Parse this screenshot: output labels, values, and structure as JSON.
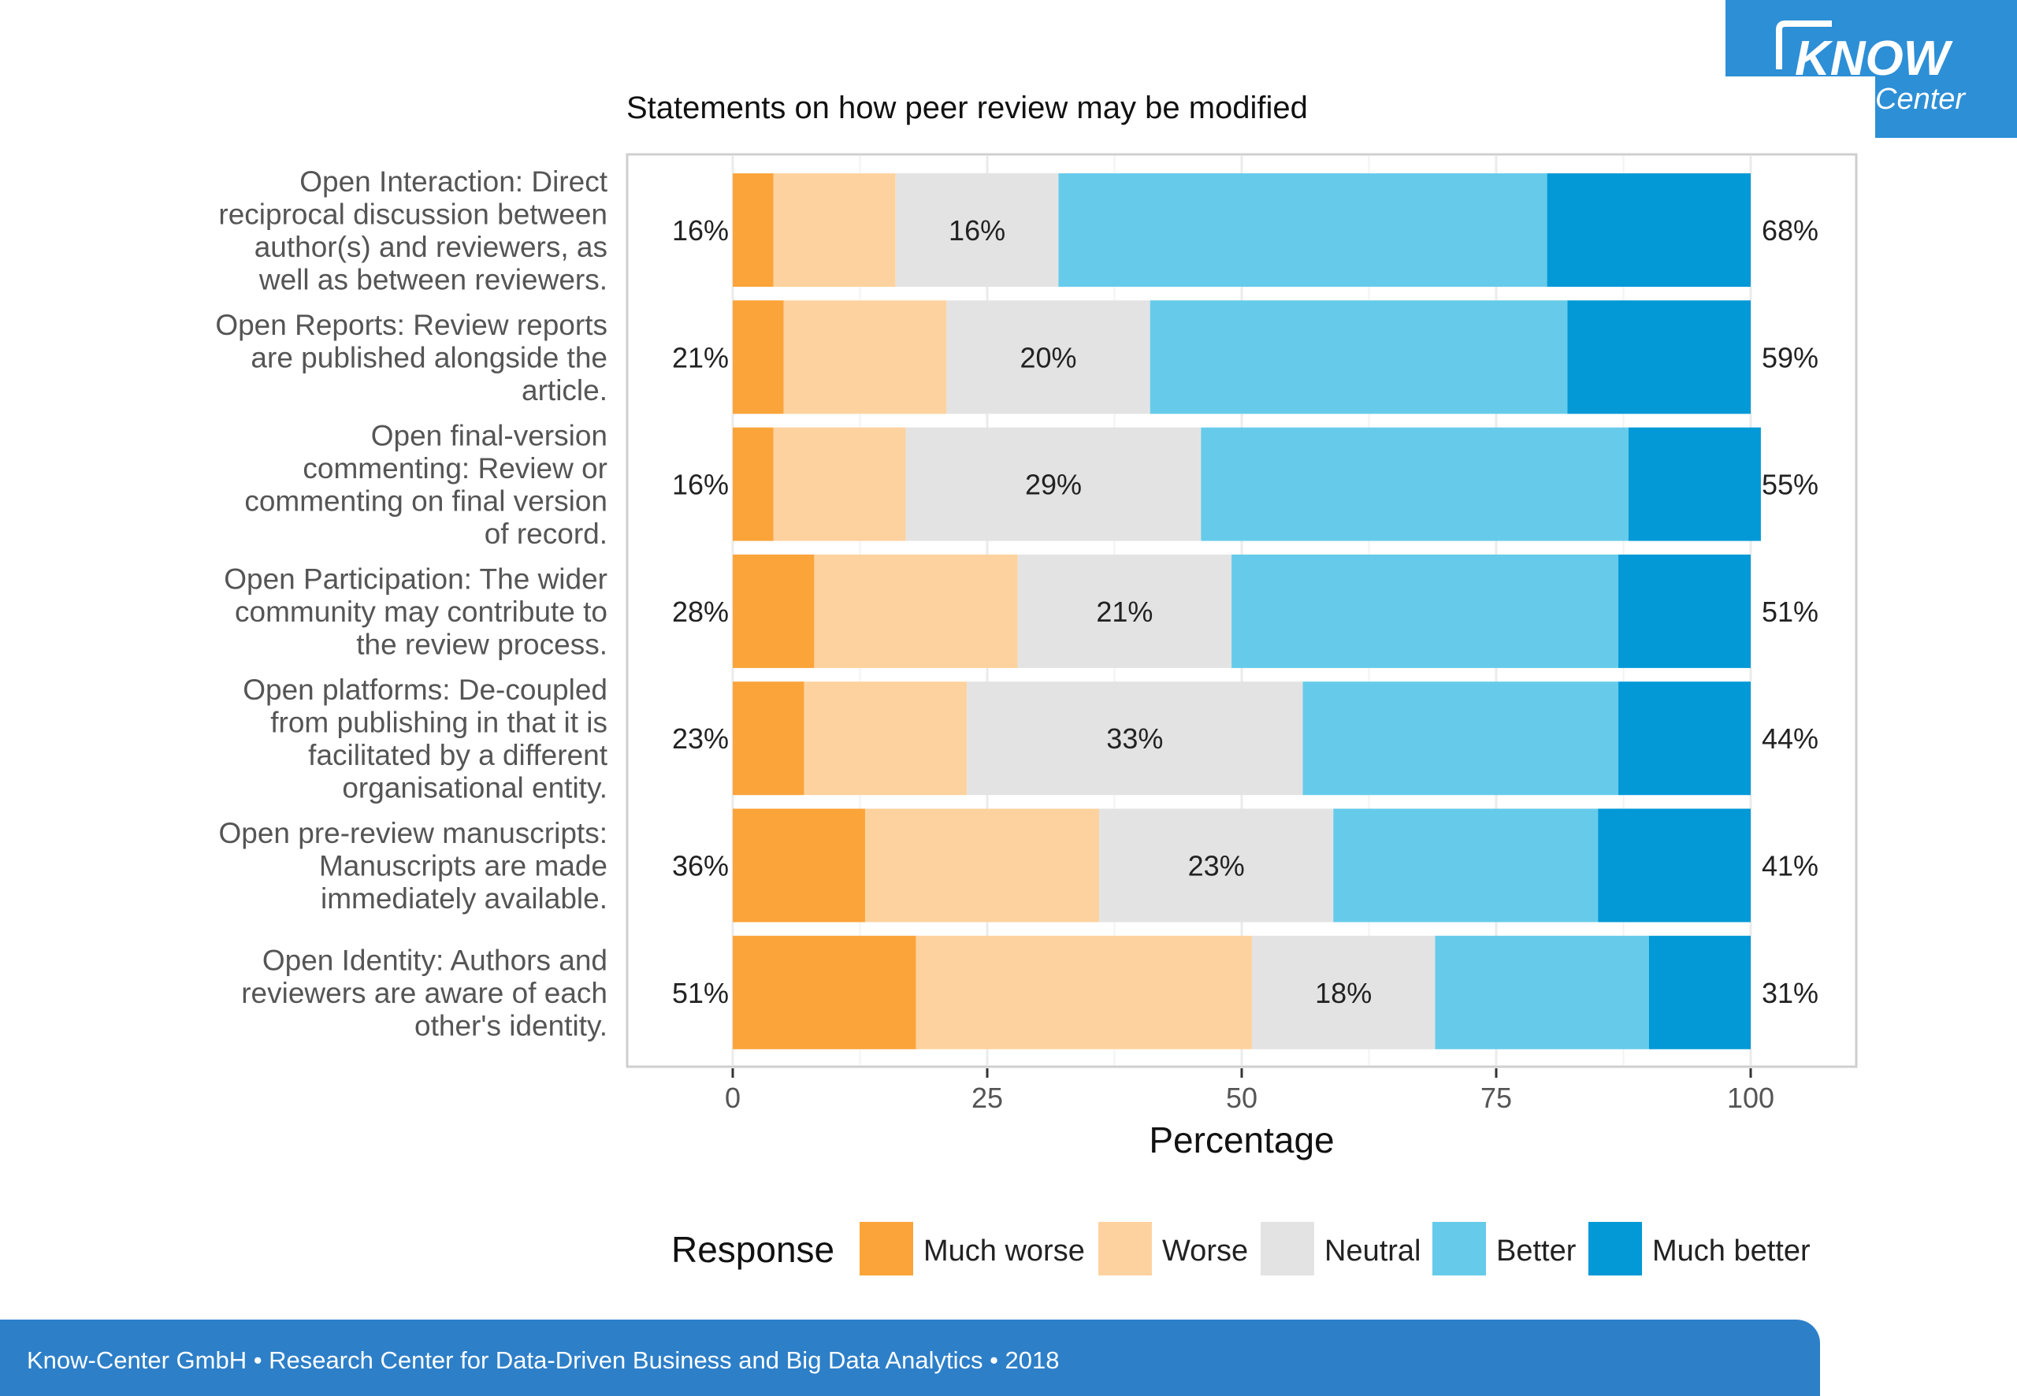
{
  "chart_data": {
    "type": "bar",
    "stacked": true,
    "orientation": "horizontal",
    "title": "Statements on how peer review may be modified",
    "xlabel": "Percentage",
    "ylabel": "",
    "xlim": [
      0,
      100
    ],
    "x_ticks": [
      "0",
      "25",
      "50",
      "75",
      "100"
    ],
    "grid": true,
    "legend_title": "Response",
    "legend_position": "bottom",
    "categories": [
      [
        "Open Interaction: Direct",
        "reciprocal discussion between",
        "author(s) and reviewers, as",
        "well as between reviewers."
      ],
      [
        "Open Reports: Review reports",
        "are published alongside the",
        "article."
      ],
      [
        "Open final-version",
        "commenting: Review or",
        "commenting on final version",
        "of record."
      ],
      [
        "Open Participation: The wider",
        "community may contribute to",
        "the review process."
      ],
      [
        "Open platforms: De-coupled",
        "from publishing in that it is",
        "facilitated by a different",
        "organisational entity."
      ],
      [
        "Open pre-review manuscripts:",
        "Manuscripts are made",
        "immediately available."
      ],
      [
        "Open Identity: Authors and",
        "reviewers are aware of each",
        "other's identity."
      ]
    ],
    "series": [
      {
        "name": "Much worse",
        "color": "#fba43a",
        "values": [
          4,
          5,
          4,
          8,
          7,
          13,
          18
        ]
      },
      {
        "name": "Worse",
        "color": "#fed29e",
        "values": [
          12,
          16,
          13,
          20,
          16,
          23,
          33
        ]
      },
      {
        "name": "Neutral",
        "color": "#e3e3e3",
        "values": [
          16,
          20,
          29,
          21,
          33,
          23,
          18
        ]
      },
      {
        "name": "Better",
        "color": "#66cbea",
        "values": [
          48,
          41,
          42,
          38,
          31,
          26,
          21
        ]
      },
      {
        "name": "Much better",
        "color": "#0299d6",
        "values": [
          20,
          18,
          13,
          13,
          13,
          15,
          10
        ]
      }
    ],
    "left_totals": [
      "16%",
      "21%",
      "16%",
      "28%",
      "23%",
      "36%",
      "51%"
    ],
    "neutral_labels": [
      "16%",
      "20%",
      "29%",
      "21%",
      "33%",
      "23%",
      "18%"
    ],
    "right_totals": [
      "68%",
      "59%",
      "55%",
      "51%",
      "44%",
      "41%",
      "31%"
    ]
  },
  "logo": {
    "line1": "KNOW",
    "line2": "Center",
    "color": "#2d8fd6"
  },
  "footer": {
    "text": "Know-Center GmbH • Research Center for Data-Driven Business and Big Data Analytics • 2018",
    "color": "#2d7fc8"
  }
}
